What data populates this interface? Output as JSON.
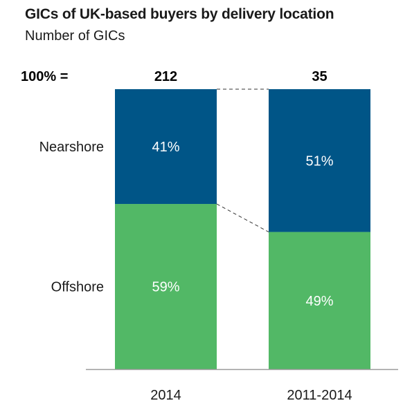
{
  "title": "GICs of UK-based buyers by delivery location",
  "subtitle": "Number of GICs",
  "total_label": "100% =",
  "colors": {
    "Nearshore": "#005587",
    "Offshore": "#52b866",
    "axis": "#999999",
    "connector": "#333333"
  },
  "chart_data": {
    "type": "bar",
    "stacked": true,
    "normalized": true,
    "title": "GICs of UK-based buyers by delivery location",
    "subtitle": "Number of GICs",
    "categories": [
      "2014",
      "2011-2014"
    ],
    "totals": [
      "212",
      "35"
    ],
    "series": [
      {
        "name": "Offshore",
        "values": [
          59,
          49
        ],
        "labels": [
          "59%",
          "49%"
        ]
      },
      {
        "name": "Nearshore",
        "values": [
          41,
          51
        ],
        "labels": [
          "41%",
          "51%"
        ]
      }
    ],
    "ylim": [
      0,
      100
    ],
    "legend": "left"
  }
}
